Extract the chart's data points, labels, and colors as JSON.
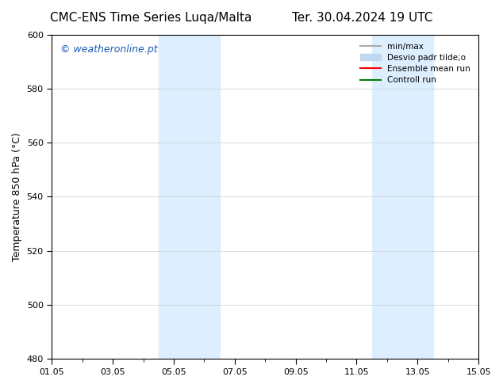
{
  "title_left": "CMC-ENS Time Series Luqa/Malta",
  "title_right": "Ter. 30.04.2024 19 UTC",
  "ylabel": "Temperature 850 hPa (°C)",
  "ylim": [
    480,
    600
  ],
  "yticks": [
    480,
    500,
    520,
    540,
    560,
    580,
    600
  ],
  "xlim_start": 0,
  "xlim_end": 14,
  "xtick_labels": [
    "01.05",
    "03.05",
    "05.05",
    "07.05",
    "09.05",
    "11.05",
    "13.05",
    "15.05"
  ],
  "xtick_positions": [
    0,
    2,
    4,
    6,
    8,
    10,
    12,
    14
  ],
  "shaded_regions": [
    {
      "xmin": 3.5,
      "xmax": 5.5
    },
    {
      "xmin": 10.5,
      "xmax": 12.5
    }
  ],
  "shade_color": "#ddeeff",
  "watermark_text": "© weatheronline.pt",
  "watermark_color": "#1a5ab5",
  "legend_entries": [
    {
      "label": "min/max",
      "color": "#aaaaaa",
      "lw": 1.5
    },
    {
      "label": "Desvio padr tilde;o",
      "color": "#c0d8f0",
      "lw": 8
    },
    {
      "label": "Ensemble mean run",
      "color": "red",
      "lw": 1.5
    },
    {
      "label": "Controll run",
      "color": "green",
      "lw": 1.5
    }
  ],
  "bg_color": "#ffffff",
  "spine_color": "#000000",
  "grid_color": "#cccccc",
  "title_fontsize": 11,
  "axis_fontsize": 9,
  "tick_fontsize": 8,
  "watermark_fontsize": 9
}
